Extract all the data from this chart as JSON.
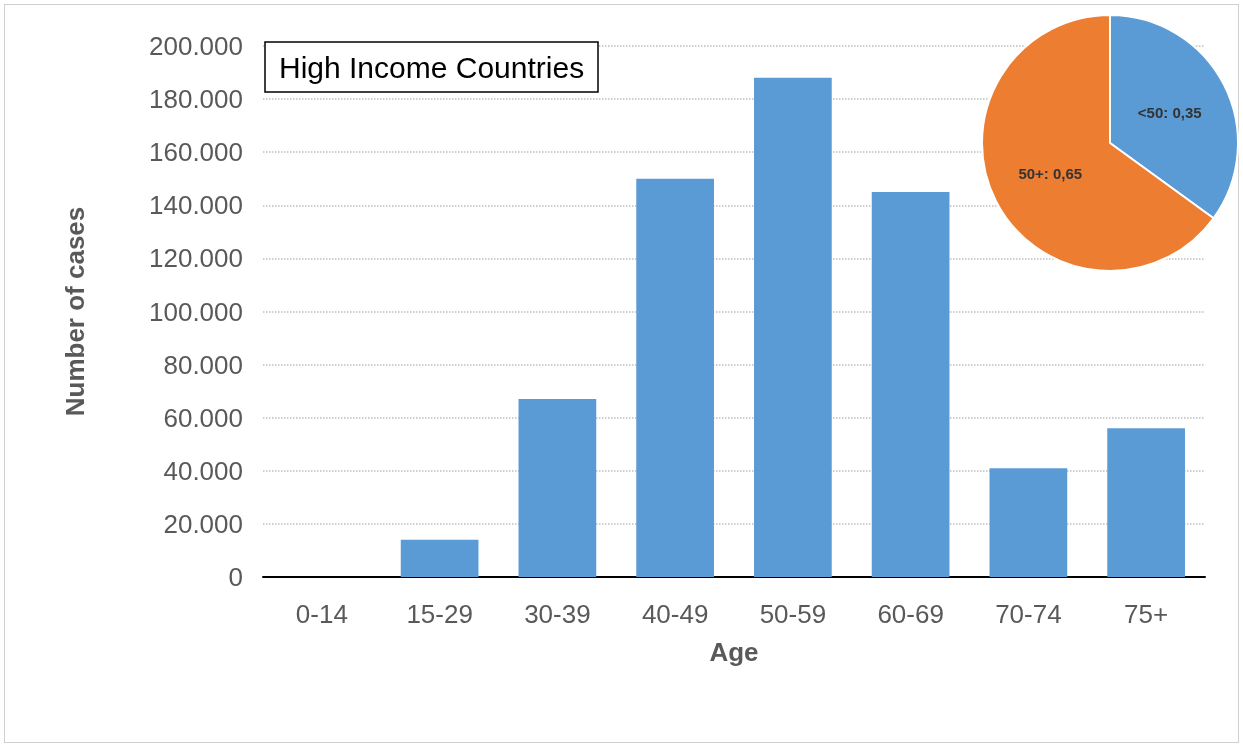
{
  "chart_data": [
    {
      "type": "bar",
      "title": "High Income Countries",
      "xlabel": "Age",
      "ylabel": "Number of cases",
      "categories": [
        "0-14",
        "15-29",
        "30-39",
        "40-49",
        "50-59",
        "60-69",
        "70-74",
        "75+"
      ],
      "values": [
        0,
        14000,
        67000,
        150000,
        188000,
        145000,
        41000,
        56000
      ],
      "color": "#5b9bd5",
      "ylim": [
        0,
        200000
      ],
      "yticks": [
        0,
        {
          "value": 20000,
          "label": "20.000"
        },
        {
          "value": 40000,
          "label": "40.000"
        },
        {
          "value": 60000,
          "label": "60.000"
        },
        {
          "value": 80000,
          "label": "80.000"
        },
        {
          "value": 100000,
          "label": "100.000"
        },
        {
          "value": 120000,
          "label": "120.000"
        },
        {
          "value": 140000,
          "label": "140.000"
        },
        {
          "value": 160000,
          "label": "160.000"
        },
        {
          "value": 180000,
          "label": "180.000"
        },
        {
          "value": 200000,
          "label": "200.000"
        }
      ],
      "grid": "y"
    },
    {
      "type": "pie",
      "categories": [
        "<50",
        "50+"
      ],
      "values": [
        0.35,
        0.65
      ],
      "value_labels": [
        "0,35",
        "0,65"
      ],
      "colors": [
        "#5b9bd5",
        "#ed7d31"
      ]
    }
  ]
}
